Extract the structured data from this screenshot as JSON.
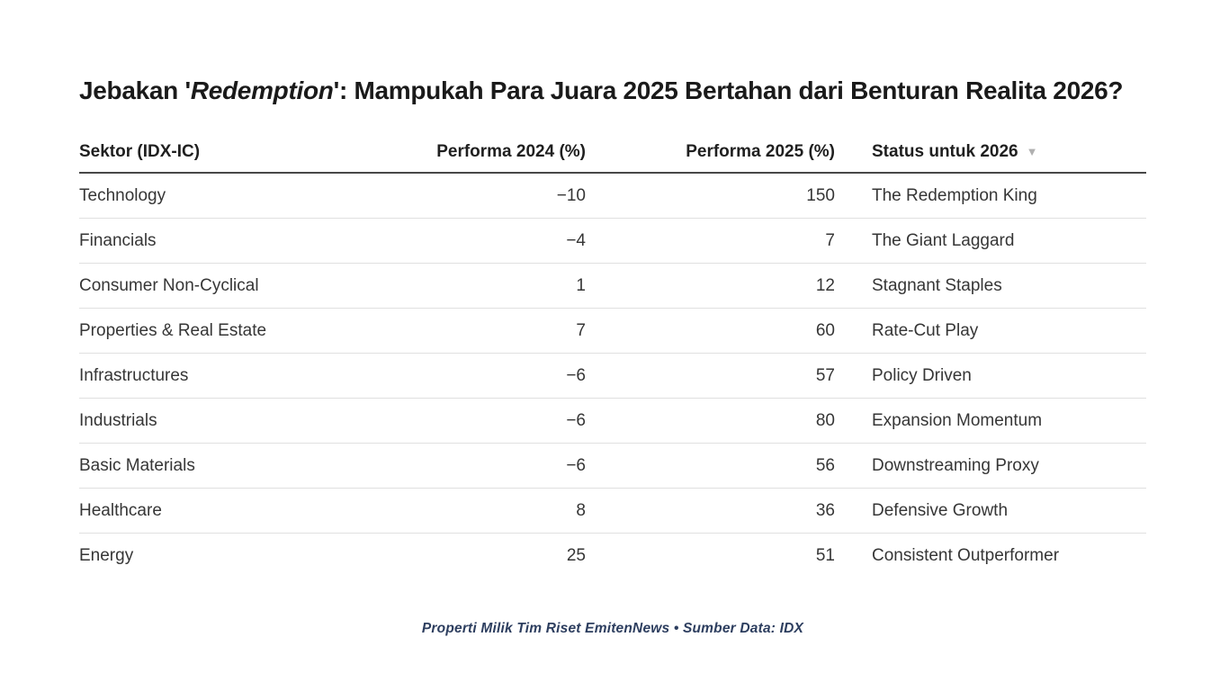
{
  "title": {
    "text_before_italic": "Jebakan '",
    "italic_text": "Redemption",
    "text_after_italic": "': Mampukah Para Juara 2025 Bertahan dari Benturan Realita 2026?"
  },
  "table": {
    "headers": [
      {
        "label": "Sektor (IDX-IC)"
      },
      {
        "label": "Performa 2024 (%)"
      },
      {
        "label": "Performa 2025 (%)"
      },
      {
        "label": "Status untuk 2026",
        "sort_indicator": "▼"
      }
    ]
  },
  "footer": {
    "text": "Properti Milik Tim Riset EmitenNews • Sumber Data: IDX"
  },
  "colors": {
    "title_text": "#1a1a1a",
    "header_text": "#1f1f1f",
    "body_text": "#363636",
    "header_border": "#474747",
    "row_divider": "#e0e0e0",
    "sort_indicator": "#b0b0b0",
    "footer_text": "#2d3e5f",
    "background": "#ffffff"
  },
  "chart_data": {
    "type": "table",
    "title": "Jebakan 'Redemption': Mampukah Para Juara 2025 Bertahan dari Benturan Realita 2026?",
    "columns": [
      "Sektor (IDX-IC)",
      "Performa 2024 (%)",
      "Performa 2025 (%)",
      "Status untuk 2026"
    ],
    "sorted_column": "Status untuk 2026",
    "rows": [
      [
        "Technology",
        -10,
        150,
        "The Redemption King"
      ],
      [
        "Financials",
        -4,
        7,
        "The Giant Laggard"
      ],
      [
        "Consumer Non-Cyclical",
        1,
        12,
        "Stagnant Staples"
      ],
      [
        "Properties & Real Estate",
        7,
        60,
        "Rate-Cut Play"
      ],
      [
        "Infrastructures",
        -6,
        57,
        "Policy Driven"
      ],
      [
        "Industrials",
        -6,
        80,
        "Expansion Momentum"
      ],
      [
        "Basic Materials",
        -6,
        56,
        "Downstreaming Proxy"
      ],
      [
        "Healthcare",
        8,
        36,
        "Defensive Growth"
      ],
      [
        "Energy",
        25,
        51,
        "Consistent Outperformer"
      ]
    ],
    "source": "Properti Milik Tim Riset EmitenNews • Sumber Data: IDX"
  }
}
